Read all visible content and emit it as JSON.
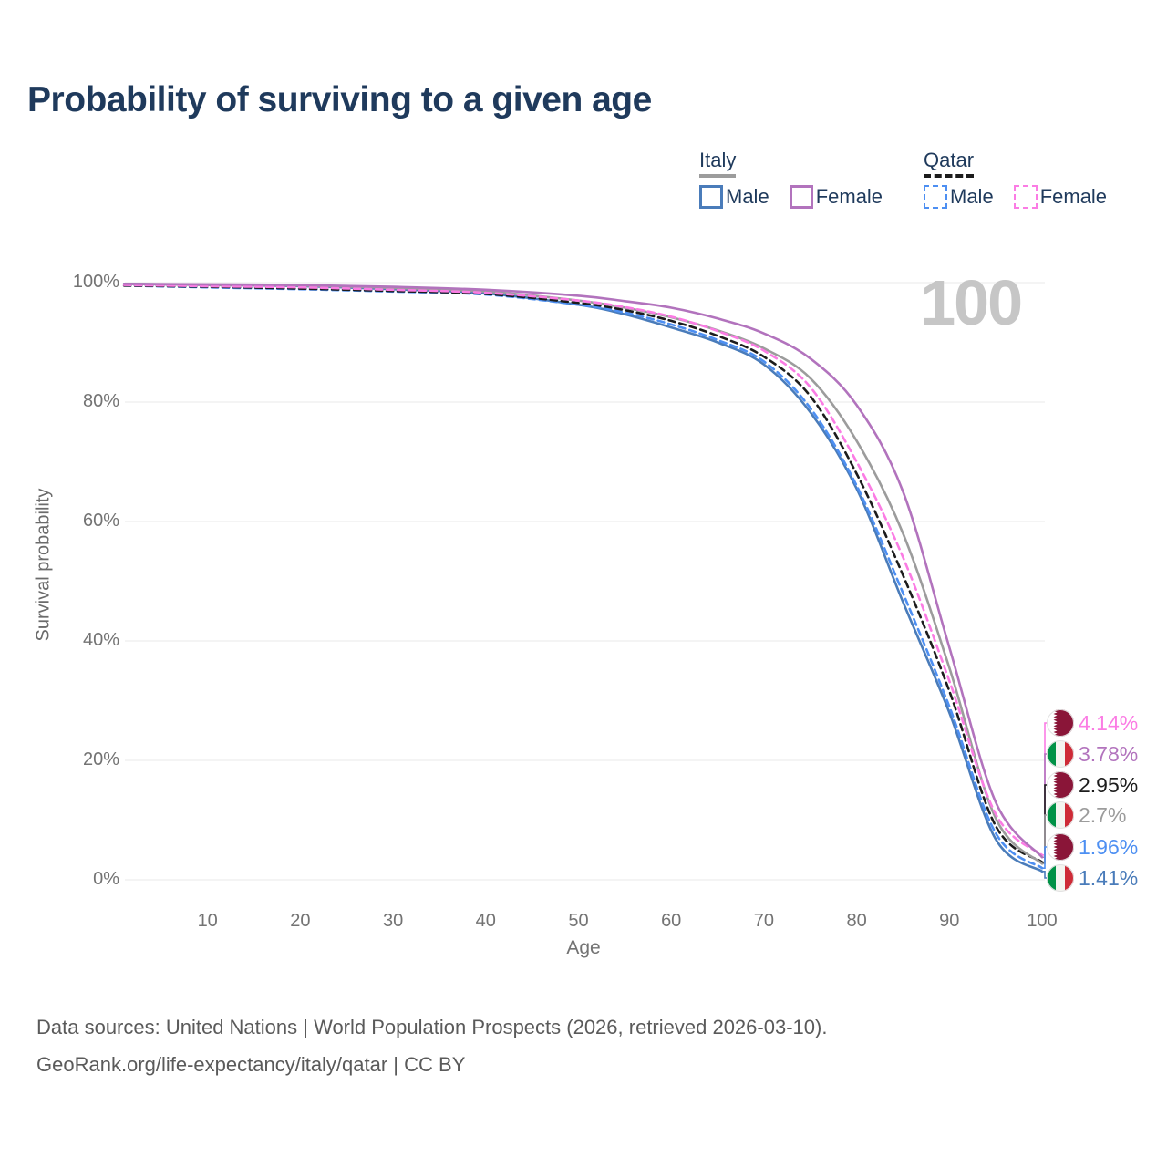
{
  "title": "Probability of surviving to a given age",
  "watermark_age": "100",
  "legend": {
    "groups": [
      {
        "name": "Italy",
        "line_style": "solid",
        "underline_color": "#9c9c9c",
        "items": [
          {
            "label": "Male",
            "color": "#4a7cba"
          },
          {
            "label": "Female",
            "color": "#b273bd"
          }
        ]
      },
      {
        "name": "Qatar",
        "line_style": "dashed",
        "underline_color": "#1c1c1c",
        "items": [
          {
            "label": "Male",
            "color": "#4d8ff2"
          },
          {
            "label": "Female",
            "color": "#fb7ce4"
          }
        ]
      }
    ]
  },
  "axes": {
    "y_label": "Survival probability",
    "y_ticks": [
      {
        "value": 100,
        "label": "100%"
      },
      {
        "value": 80,
        "label": "80%"
      },
      {
        "value": 60,
        "label": "60%"
      },
      {
        "value": 40,
        "label": "40%"
      },
      {
        "value": 20,
        "label": "20%"
      },
      {
        "value": 0,
        "label": "0%"
      }
    ],
    "x_label": "Age",
    "x_ticks": [
      {
        "value": 10,
        "label": "10"
      },
      {
        "value": 20,
        "label": "20"
      },
      {
        "value": 30,
        "label": "30"
      },
      {
        "value": 40,
        "label": "40"
      },
      {
        "value": 50,
        "label": "50"
      },
      {
        "value": 60,
        "label": "60"
      },
      {
        "value": 70,
        "label": "70"
      },
      {
        "value": 80,
        "label": "80"
      },
      {
        "value": 90,
        "label": "90"
      },
      {
        "value": 100,
        "label": "100"
      }
    ]
  },
  "chart_data": {
    "type": "line",
    "title": "Probability of surviving to a given age",
    "xlabel": "Age",
    "ylabel": "Survival probability",
    "xlim": [
      0,
      100
    ],
    "ylim": [
      0,
      100
    ],
    "grid": true,
    "legend_position": "top-right",
    "x": [
      1,
      10,
      20,
      30,
      40,
      50,
      55,
      60,
      65,
      70,
      75,
      80,
      85,
      90,
      95,
      100
    ],
    "series": [
      {
        "name": "Italy Male",
        "color": "#4a7cba",
        "dashed": false,
        "values": [
          99.8,
          99.6,
          99.4,
          98.9,
          98.2,
          96.3,
          94.7,
          92.5,
          90.0,
          86.3,
          78.3,
          65.5,
          46.5,
          28.0,
          6.8,
          1.41
        ]
      },
      {
        "name": "Qatar Male",
        "color": "#4d8ff2",
        "dashed": true,
        "values": [
          99.5,
          99.2,
          98.9,
          98.5,
          98.0,
          96.3,
          95.0,
          93.0,
          90.4,
          86.8,
          79.0,
          66.0,
          48.0,
          29.0,
          7.8,
          1.96
        ]
      },
      {
        "name": "Qatar Both sexes",
        "color": "#1c1c1c",
        "dashed": true,
        "values": [
          99.5,
          99.3,
          99.0,
          98.6,
          98.1,
          96.6,
          95.4,
          93.6,
          91.1,
          87.6,
          81.0,
          68.0,
          51.0,
          31.6,
          9.0,
          2.95
        ]
      },
      {
        "name": "Italy Both sexes",
        "color": "#9c9c9c",
        "dashed": false,
        "values": [
          99.8,
          99.6,
          99.5,
          99.1,
          98.5,
          97.0,
          95.8,
          94.2,
          92.0,
          89.0,
          84.0,
          73.5,
          58.0,
          35.5,
          10.3,
          2.7
        ]
      },
      {
        "name": "Qatar Female",
        "color": "#fb7ce4",
        "dashed": true,
        "values": [
          99.6,
          99.4,
          99.2,
          98.8,
          98.3,
          97.0,
          95.9,
          94.3,
          91.9,
          88.6,
          82.5,
          70.0,
          54.0,
          33.3,
          11.0,
          4.14
        ]
      },
      {
        "name": "Italy Female",
        "color": "#b273bd",
        "dashed": false,
        "values": [
          99.8,
          99.7,
          99.6,
          99.3,
          98.8,
          97.8,
          96.9,
          95.8,
          94.0,
          91.5,
          87.3,
          79.5,
          65.0,
          38.9,
          13.0,
          3.78
        ]
      }
    ]
  },
  "end_labels": [
    {
      "flag": "qatar",
      "series": "Qatar Female",
      "label": "4.14%",
      "value": 4.14,
      "color": "#fb7ce4"
    },
    {
      "flag": "italy",
      "series": "Italy Female",
      "label": "3.78%",
      "value": 3.78,
      "color": "#b273bd"
    },
    {
      "flag": "qatar",
      "series": "Qatar Both sexes",
      "label": "2.95%",
      "value": 2.95,
      "color": "#1c1c1c"
    },
    {
      "flag": "italy",
      "series": "Italy Both sexes",
      "label": "2.7%",
      "value": 2.7,
      "color": "#9c9c9c"
    },
    {
      "flag": "qatar",
      "series": "Qatar Male",
      "label": "1.96%",
      "value": 1.96,
      "color": "#4d8ff2"
    },
    {
      "flag": "italy",
      "series": "Italy Male",
      "label": "1.41%",
      "value": 1.41,
      "color": "#4a7cba"
    }
  ],
  "flag_colors": {
    "qatar_maroon": "#8a1538",
    "italy_green": "#009246",
    "italy_red": "#ce2b37"
  },
  "footer": {
    "line1": "Data sources: United Nations | World Population Prospects (2026, retrieved 2026-03-10).",
    "line2": "GeoRank.org/life-expectancy/italy/qatar | CC BY"
  }
}
